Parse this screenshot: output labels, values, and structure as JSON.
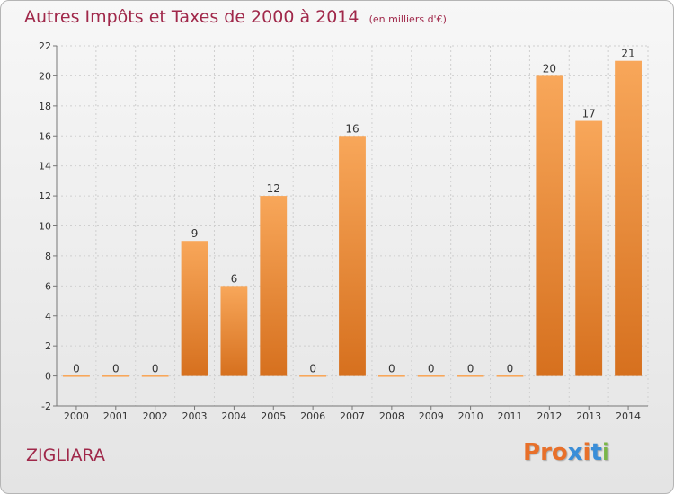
{
  "header": {
    "title": "Autres Impôts et Taxes de 2000 à 2014",
    "subtitle": "(en milliers d'€)"
  },
  "footer": {
    "place": "ZIGLIARA",
    "logo_text": "Proxiti",
    "logo_colors": [
      "#e8702a",
      "#e8702a",
      "#e8702a",
      "#3a8ed8",
      "#e8702a",
      "#3a8ed8",
      "#7ab648"
    ]
  },
  "colors": {
    "title": "#a0284a",
    "bar_top": "#f8a75a",
    "bar_bottom": "#d6701e",
    "grid": "#cfcfcf",
    "axis_text": "#333333"
  },
  "chart_data": {
    "type": "bar",
    "categories": [
      "2000",
      "2001",
      "2002",
      "2003",
      "2004",
      "2005",
      "2006",
      "2007",
      "2008",
      "2009",
      "2010",
      "2011",
      "2012",
      "2013",
      "2014"
    ],
    "values": [
      0,
      0,
      0,
      9,
      6,
      12,
      0,
      16,
      0,
      0,
      0,
      0,
      20,
      17,
      21
    ],
    "data_labels": [
      "0",
      "0",
      "0",
      "9",
      "6",
      "12",
      "0",
      "16",
      "0",
      "0",
      "0",
      "0",
      "20",
      "17",
      "21"
    ],
    "yticks": [
      "-2",
      "0",
      "2",
      "4",
      "6",
      "8",
      "10",
      "12",
      "14",
      "16",
      "18",
      "20",
      "22"
    ],
    "ylim": [
      -2,
      22
    ],
    "grid": true,
    "legend": "none"
  }
}
